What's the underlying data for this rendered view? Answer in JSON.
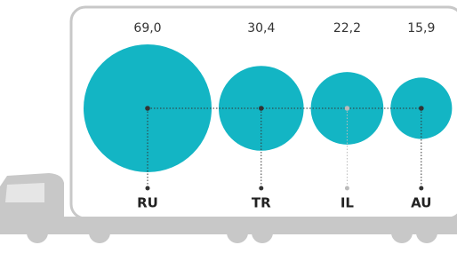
{
  "chart_data": {
    "type": "bubble",
    "categories": [
      "RU",
      "TR",
      "IL",
      "AU"
    ],
    "values": [
      69.0,
      30.4,
      22.2,
      15.9
    ],
    "value_labels": [
      "69,0",
      "30,4",
      "22,2",
      "15,9"
    ],
    "color": "#13b5c4"
  }
}
